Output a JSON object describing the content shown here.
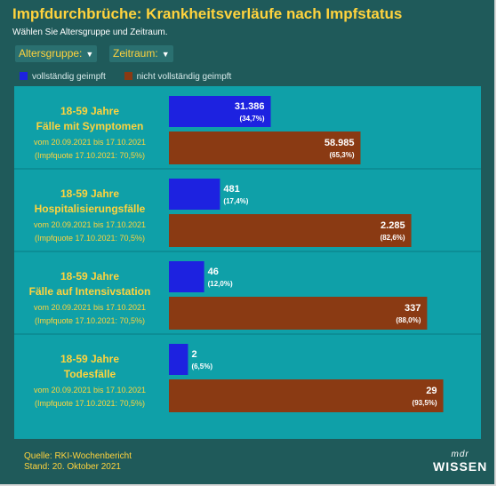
{
  "header": {
    "title": "Impfdurchbrüche: Krankheitsverläufe nach Impfstatus",
    "subtitle": "Wählen Sie Altersgruppe und Zeitraum."
  },
  "filters": {
    "altersgruppe_label": "Altersgruppe:",
    "zeitraum_label": "Zeitraum:",
    "chevron_icon": "chevron-down-icon"
  },
  "legend": {
    "vaccinated": "vollständig geimpft",
    "unvaccinated": "nicht vollständig geimpft"
  },
  "colors": {
    "vaccinated": "#1d22e0",
    "unvaccinated": "#8a3a13",
    "title": "#ffd33d",
    "panel": "#0fa0a8",
    "background": "#1f5a5a"
  },
  "chart_data": {
    "type": "bar",
    "orientation": "horizontal",
    "grid": false,
    "legend_placement": "top-left",
    "series_names": [
      "vollständig geimpft",
      "nicht vollständig geimpft"
    ],
    "groups": [
      {
        "age": "18-59 Jahre",
        "category": "Fälle mit Symptomen",
        "period": "vom 20.09.2021 bis 17.10.2021",
        "quote": "(Impfquote 17.10.2021: 70,5%)",
        "vaccinated": 31386,
        "vaccinated_label": "31.386",
        "vaccinated_pct": "(34,7%)",
        "vaccinated_share": 34.7,
        "unvaccinated": 58985,
        "unvaccinated_label": "58.985",
        "unvaccinated_pct": "(65,3%)",
        "unvaccinated_share": 65.3
      },
      {
        "age": "18-59 Jahre",
        "category": "Hospitalisierungsfälle",
        "period": "vom 20.09.2021 bis 17.10.2021",
        "quote": "(Impfquote 17.10.2021: 70,5%)",
        "vaccinated": 481,
        "vaccinated_label": "481",
        "vaccinated_pct": "(17,4%)",
        "vaccinated_share": 17.4,
        "unvaccinated": 2285,
        "unvaccinated_label": "2.285",
        "unvaccinated_pct": "(82,6%)",
        "unvaccinated_share": 82.6
      },
      {
        "age": "18-59 Jahre",
        "category": "Fälle auf Intensivstation",
        "period": "vom 20.09.2021 bis 17.10.2021",
        "quote": "(Impfquote 17.10.2021: 70,5%)",
        "vaccinated": 46,
        "vaccinated_label": "46",
        "vaccinated_pct": "(12,0%)",
        "vaccinated_share": 12.0,
        "unvaccinated": 337,
        "unvaccinated_label": "337",
        "unvaccinated_pct": "(88,0%)",
        "unvaccinated_share": 88.0
      },
      {
        "age": "18-59 Jahre",
        "category": "Todesfälle",
        "period": "vom 20.09.2021 bis 17.10.2021",
        "quote": "(Impfquote 17.10.2021: 70,5%)",
        "vaccinated": 2,
        "vaccinated_label": "2",
        "vaccinated_pct": "(6,5%)",
        "vaccinated_share": 6.5,
        "unvaccinated": 29,
        "unvaccinated_label": "29",
        "unvaccinated_pct": "(93,5%)",
        "unvaccinated_share": 93.5
      }
    ]
  },
  "footer": {
    "source": "Quelle: RKI-Wochenbericht",
    "date": "Stand: 20. Oktober 2021",
    "logo_top": "mdr",
    "logo_bottom": "WISSEN"
  }
}
